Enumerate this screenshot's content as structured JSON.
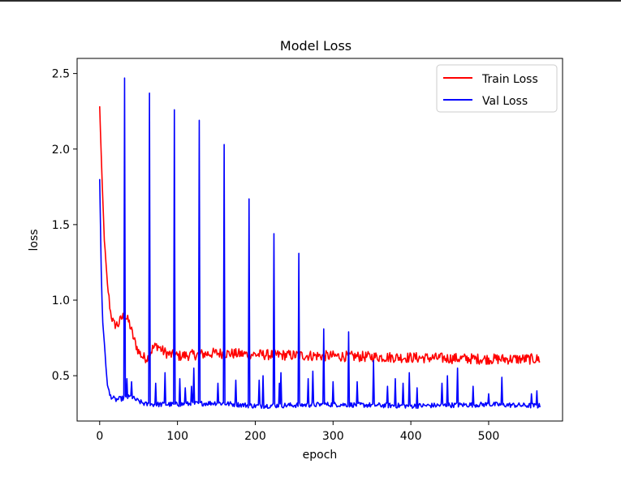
{
  "chart_data": {
    "type": "line",
    "title": "Model Loss",
    "xlabel": "epoch",
    "ylabel": "loss",
    "xlim": [
      -29,
      595
    ],
    "ylim": [
      0.2,
      2.6
    ],
    "xticks": [
      0,
      100,
      200,
      300,
      400,
      500
    ],
    "yticks": [
      0.5,
      1.0,
      1.5,
      2.0,
      2.5
    ],
    "xtick_labels": [
      "0",
      "100",
      "200",
      "300",
      "400",
      "500"
    ],
    "ytick_labels": [
      "0.5",
      "1.0",
      "1.5",
      "2.0",
      "2.5"
    ],
    "grid": false,
    "legend_position": "upper-right",
    "epochs": 566,
    "series": [
      {
        "name": "Train Loss",
        "color": "#ff0000",
        "anchors": [
          [
            0,
            2.28
          ],
          [
            3,
            1.8
          ],
          [
            6,
            1.4
          ],
          [
            10,
            1.1
          ],
          [
            14,
            0.92
          ],
          [
            18,
            0.84
          ],
          [
            24,
            0.84
          ],
          [
            28,
            0.88
          ],
          [
            32,
            0.9
          ],
          [
            38,
            0.85
          ],
          [
            44,
            0.74
          ],
          [
            50,
            0.66
          ],
          [
            56,
            0.62
          ],
          [
            62,
            0.62
          ],
          [
            68,
            0.68
          ],
          [
            74,
            0.7
          ],
          [
            82,
            0.66
          ],
          [
            90,
            0.64
          ],
          [
            100,
            0.63
          ],
          [
            150,
            0.65
          ],
          [
            200,
            0.64
          ],
          [
            300,
            0.63
          ],
          [
            400,
            0.62
          ],
          [
            500,
            0.61
          ],
          [
            566,
            0.61
          ]
        ],
        "noise": 0.022
      },
      {
        "name": "Val Loss",
        "color": "#0000ff",
        "anchors": [
          [
            0,
            1.8
          ],
          [
            1,
            1.5
          ],
          [
            2,
            1.2
          ],
          [
            3,
            1.0
          ],
          [
            4,
            0.85
          ],
          [
            6,
            0.72
          ],
          [
            8,
            0.56
          ],
          [
            10,
            0.44
          ],
          [
            13,
            0.37
          ],
          [
            20,
            0.34
          ],
          [
            30,
            0.35
          ],
          [
            40,
            0.36
          ],
          [
            50,
            0.33
          ],
          [
            60,
            0.31
          ],
          [
            100,
            0.31
          ],
          [
            150,
            0.32
          ],
          [
            200,
            0.3
          ],
          [
            300,
            0.31
          ],
          [
            400,
            0.3
          ],
          [
            500,
            0.31
          ],
          [
            566,
            0.3
          ]
        ],
        "noise": 0.014,
        "spikes": [
          [
            32,
            2.47
          ],
          [
            64,
            2.37
          ],
          [
            96,
            2.26
          ],
          [
            128,
            2.19
          ],
          [
            160,
            2.03
          ],
          [
            192,
            1.67
          ],
          [
            224,
            1.44
          ],
          [
            256,
            1.31
          ],
          [
            288,
            0.81
          ],
          [
            320,
            0.79
          ],
          [
            352,
            0.6
          ],
          [
            460,
            0.55
          ],
          [
            517,
            0.49
          ]
        ],
        "bumps": [
          [
            35,
            0.48
          ],
          [
            41,
            0.46
          ],
          [
            72,
            0.45
          ],
          [
            84,
            0.52
          ],
          [
            103,
            0.48
          ],
          [
            110,
            0.42
          ],
          [
            118,
            0.43
          ],
          [
            121,
            0.55
          ],
          [
            152,
            0.45
          ],
          [
            175,
            0.47
          ],
          [
            205,
            0.47
          ],
          [
            210,
            0.5
          ],
          [
            231,
            0.45
          ],
          [
            233,
            0.52
          ],
          [
            268,
            0.48
          ],
          [
            274,
            0.53
          ],
          [
            300,
            0.46
          ],
          [
            331,
            0.46
          ],
          [
            370,
            0.43
          ],
          [
            380,
            0.48
          ],
          [
            390,
            0.45
          ],
          [
            398,
            0.52
          ],
          [
            408,
            0.42
          ],
          [
            440,
            0.45
          ],
          [
            447,
            0.5
          ],
          [
            480,
            0.43
          ],
          [
            500,
            0.38
          ],
          [
            555,
            0.38
          ],
          [
            562,
            0.4
          ]
        ]
      }
    ]
  }
}
